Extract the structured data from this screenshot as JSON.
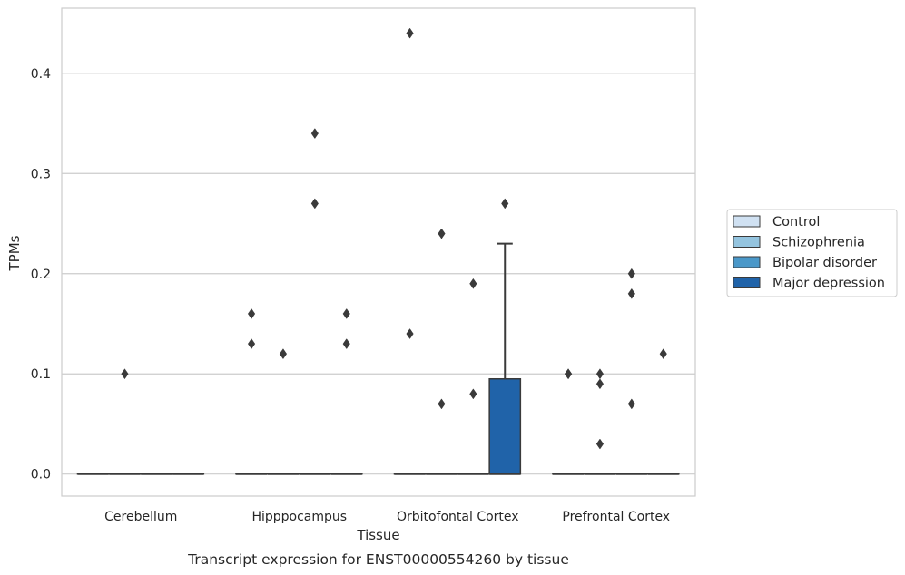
{
  "chart_data": {
    "type": "box",
    "xlabel": "Tissue",
    "ylabel": "TPMs",
    "caption": "Transcript expression for ENST00000554260 by tissue",
    "categories": [
      "Cerebellum",
      "Hipppocampus",
      "Orbitofontal Cortex",
      "Prefrontal Cortex"
    ],
    "y_ticks": [
      "0.0",
      "0.1",
      "0.2",
      "0.3",
      "0.4"
    ],
    "y_tick_values": [
      0.0,
      0.1,
      0.2,
      0.3,
      0.4
    ],
    "ylim": [
      -0.022,
      0.465
    ],
    "grid": true,
    "legend_placement": "right",
    "series": [
      {
        "name": "Control",
        "color": "#d0e1f2"
      },
      {
        "name": "Schizophrenia",
        "color": "#94c4df"
      },
      {
        "name": "Bipolar disorder",
        "color": "#4a98c9"
      },
      {
        "name": "Major depression",
        "color": "#2063a9"
      }
    ],
    "boxes": [
      {
        "category": 0,
        "series": 0,
        "q1": 0,
        "median": 0,
        "q3": 0,
        "whisker_low": 0,
        "whisker_high": 0,
        "outliers": []
      },
      {
        "category": 0,
        "series": 1,
        "q1": 0,
        "median": 0,
        "q3": 0,
        "whisker_low": 0,
        "whisker_high": 0,
        "outliers": [
          0.1
        ]
      },
      {
        "category": 0,
        "series": 2,
        "q1": 0,
        "median": 0,
        "q3": 0,
        "whisker_low": 0,
        "whisker_high": 0,
        "outliers": []
      },
      {
        "category": 0,
        "series": 3,
        "q1": 0,
        "median": 0,
        "q3": 0,
        "whisker_low": 0,
        "whisker_high": 0,
        "outliers": []
      },
      {
        "category": 1,
        "series": 0,
        "q1": 0,
        "median": 0,
        "q3": 0,
        "whisker_low": 0,
        "whisker_high": 0,
        "outliers": [
          0.16,
          0.13
        ]
      },
      {
        "category": 1,
        "series": 1,
        "q1": 0,
        "median": 0,
        "q3": 0,
        "whisker_low": 0,
        "whisker_high": 0,
        "outliers": [
          0.12
        ]
      },
      {
        "category": 1,
        "series": 2,
        "q1": 0,
        "median": 0,
        "q3": 0,
        "whisker_low": 0,
        "whisker_high": 0,
        "outliers": [
          0.34,
          0.27
        ]
      },
      {
        "category": 1,
        "series": 3,
        "q1": 0,
        "median": 0,
        "q3": 0,
        "whisker_low": 0,
        "whisker_high": 0,
        "outliers": [
          0.16,
          0.13
        ]
      },
      {
        "category": 2,
        "series": 0,
        "q1": 0,
        "median": 0,
        "q3": 0,
        "whisker_low": 0,
        "whisker_high": 0,
        "outliers": [
          0.44,
          0.14
        ]
      },
      {
        "category": 2,
        "series": 1,
        "q1": 0,
        "median": 0,
        "q3": 0,
        "whisker_low": 0,
        "whisker_high": 0,
        "outliers": [
          0.24,
          0.07
        ]
      },
      {
        "category": 2,
        "series": 2,
        "q1": 0,
        "median": 0,
        "q3": 0,
        "whisker_low": 0,
        "whisker_high": 0,
        "outliers": [
          0.19,
          0.08
        ]
      },
      {
        "category": 2,
        "series": 3,
        "q1": 0,
        "median": 0,
        "q3": 0.095,
        "whisker_low": 0,
        "whisker_high": 0.23,
        "outliers": [
          0.27
        ]
      },
      {
        "category": 3,
        "series": 0,
        "q1": 0,
        "median": 0,
        "q3": 0,
        "whisker_low": 0,
        "whisker_high": 0,
        "outliers": [
          0.1,
          0.1
        ]
      },
      {
        "category": 3,
        "series": 1,
        "q1": 0,
        "median": 0,
        "q3": 0,
        "whisker_low": 0,
        "whisker_high": 0,
        "outliers": [
          0.1,
          0.09,
          0.03
        ]
      },
      {
        "category": 3,
        "series": 2,
        "q1": 0,
        "median": 0,
        "q3": 0,
        "whisker_low": 0,
        "whisker_high": 0,
        "outliers": [
          0.2,
          0.18,
          0.07
        ]
      },
      {
        "category": 3,
        "series": 3,
        "q1": 0,
        "median": 0,
        "q3": 0,
        "whisker_low": 0,
        "whisker_high": 0,
        "outliers": [
          0.12
        ]
      }
    ]
  }
}
